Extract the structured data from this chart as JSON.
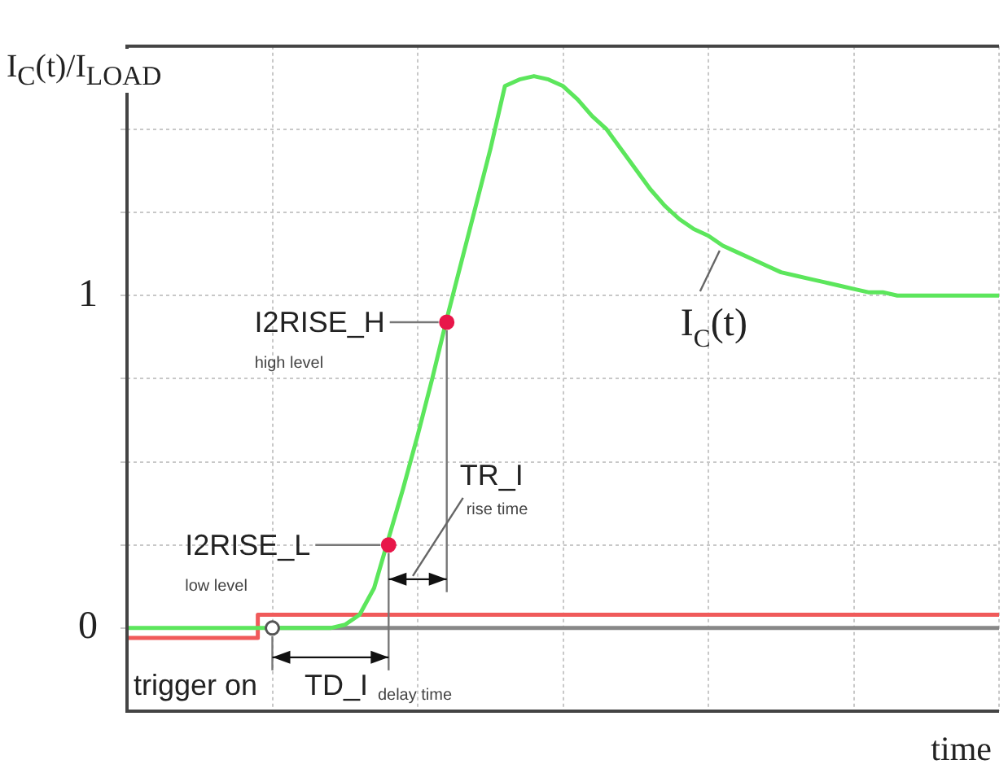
{
  "chart_data": {
    "type": "line",
    "ylabel": "I$_{C}$(t)/I$_{LOAD}$",
    "xlabel": "time",
    "categories": [
      null,
      null,
      null,
      null,
      null,
      null,
      null,
      null,
      null,
      null,
      null,
      null,
      null,
      null,
      null,
      null,
      null,
      null,
      null,
      null,
      null,
      null,
      null,
      null,
      null,
      null,
      null,
      null,
      null,
      null,
      null,
      null,
      null,
      null,
      null,
      null,
      null,
      null,
      null,
      null,
      null,
      null,
      null,
      null,
      null,
      null,
      null,
      null,
      null,
      null,
      null,
      null,
      null,
      null,
      null,
      null,
      null,
      null,
      null,
      null,
      null
    ],
    "series": [
      {
        "name": "I$_{C}$(t)",
        "type": "line",
        "color": "#5ce65c",
        "marker": "none",
        "values": [
          0,
          0,
          0,
          0,
          0,
          0,
          0,
          0,
          0,
          0,
          0,
          0,
          0,
          0,
          0,
          0.01,
          0.04,
          0.12,
          0.27,
          0.42,
          0.58,
          0.75,
          0.93,
          1.1,
          1.27,
          1.44,
          1.63,
          1.65,
          1.66,
          1.65,
          1.63,
          1.59,
          1.54,
          1.5,
          1.44,
          1.38,
          1.32,
          1.27,
          1.23,
          1.2,
          1.18,
          1.15,
          1.13,
          1.11,
          1.09,
          1.07,
          1.06,
          1.05,
          1.04,
          1.03,
          1.02,
          1.01,
          1.01,
          1,
          1,
          1,
          1,
          1,
          1,
          1,
          1
        ]
      },
      {
        "type": "step",
        "color": "#f05a5a",
        "marker": "none",
        "values": [
          -0.03,
          -0.03,
          -0.03,
          -0.03,
          -0.03,
          -0.03,
          -0.03,
          -0.03,
          -0.03,
          -0.03,
          0.04,
          0.04,
          0.04,
          0.04,
          0.04,
          0.04,
          0.04,
          0.04,
          0.04,
          0.04,
          0.04,
          0.04,
          0.04,
          0.04,
          0.04,
          0.04,
          0.04,
          0.04,
          0.04,
          0.04,
          0.04,
          0.04,
          0.04,
          0.04,
          0.04,
          0.04,
          0.04,
          0.04,
          0.04,
          0.04,
          0.04,
          0.04,
          0.04,
          0.04,
          0.04,
          0.04,
          0.04,
          0.04,
          0.04,
          0.04,
          0.04,
          0.04,
          0.04,
          0.04,
          0.04,
          0.04,
          0.04,
          0.04,
          0.04,
          0.04,
          0.04
        ]
      },
      {
        "type": "line",
        "color": "#888888",
        "marker": "none",
        "values": [
          null,
          null,
          null,
          null,
          null,
          null,
          null,
          null,
          null,
          null,
          0,
          0,
          0,
          0,
          0,
          0,
          0,
          0,
          0,
          0,
          0,
          0,
          0,
          0,
          0,
          0,
          0,
          0,
          0,
          0,
          0,
          0,
          0,
          0,
          0,
          0,
          0,
          0,
          0,
          0,
          0,
          0,
          0,
          0,
          0,
          0,
          0,
          0,
          0,
          0,
          0,
          0,
          0,
          0,
          0,
          0,
          0,
          0,
          0,
          0,
          0
        ]
      },
      {
        "type": "scatter",
        "color": "#e8174a",
        "marker": "circle",
        "values": [
          null,
          null,
          null,
          null,
          null,
          null,
          null,
          null,
          null,
          null,
          null,
          null,
          null,
          null,
          null,
          null,
          null,
          null,
          0.25,
          null,
          null,
          null,
          0.92,
          null,
          null,
          null,
          null,
          null,
          null,
          null,
          null,
          null,
          null,
          null,
          null,
          null,
          null,
          null,
          null,
          null,
          null,
          null,
          null,
          null,
          null,
          null,
          null,
          null,
          null,
          null,
          null,
          null,
          null,
          null,
          null,
          null,
          null,
          null,
          null,
          null,
          null
        ]
      },
      {
        "type": "scatter",
        "color": "#ffffff",
        "marker": "circle",
        "values": [
          null,
          null,
          null,
          null,
          null,
          null,
          null,
          null,
          null,
          null,
          0,
          null,
          null,
          null,
          null,
          null,
          null,
          null,
          null,
          null,
          null,
          null,
          null,
          null,
          null,
          null,
          null,
          null,
          null,
          null,
          null,
          null,
          null,
          null,
          null,
          null,
          null,
          null,
          null,
          null,
          null,
          null,
          null,
          null,
          null,
          null,
          null,
          null,
          null,
          null,
          null,
          null,
          null,
          null,
          null,
          null,
          null,
          null,
          null,
          null,
          null
        ]
      }
    ],
    "annotations": [
      "I2RISE_L\nlow level",
      "I2RISE_H\nhigh level",
      "TR_I\nrise time",
      "TD_I\ndelay time",
      "trigger on"
    ],
    "ylim": [
      -0.25,
      1.75
    ],
    "yticks": [
      0,
      {
        "value": 0.25,
        "label": null
      },
      {
        "value": 0.5,
        "label": null
      },
      {
        "value": 0.75,
        "label": null
      },
      1,
      {
        "value": 1.25,
        "label": null
      },
      {
        "value": 1.5,
        "label": null
      }
    ],
    "tick_labels": "y",
    "grid": true,
    "legend": false
  }
}
